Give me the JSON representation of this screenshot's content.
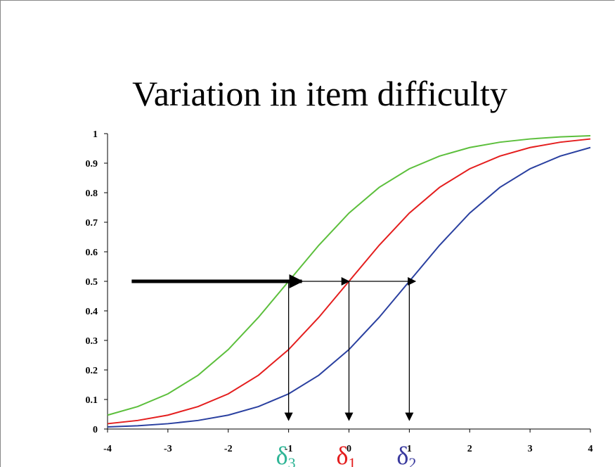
{
  "chart_data": {
    "type": "line",
    "title": "Variation in item difficulty",
    "x": [
      -4,
      -3.5,
      -3,
      -2.5,
      -2,
      -1.5,
      -1,
      -0.5,
      0,
      0.5,
      1,
      1.5,
      2,
      2.5,
      3,
      3.5,
      4
    ],
    "series": [
      {
        "color": "#5cbf3c",
        "values": [
          0.047,
          0.076,
          0.119,
          0.182,
          0.269,
          0.378,
          0.5,
          0.622,
          0.731,
          0.818,
          0.881,
          0.924,
          0.953,
          0.971,
          0.982,
          0.989,
          0.993
        ]
      },
      {
        "color": "#e41e1e",
        "values": [
          0.018,
          0.029,
          0.047,
          0.076,
          0.119,
          0.182,
          0.269,
          0.378,
          0.5,
          0.622,
          0.731,
          0.818,
          0.881,
          0.924,
          0.953,
          0.971,
          0.982
        ]
      },
      {
        "color": "#2a40a0",
        "values": [
          0.007,
          0.011,
          0.018,
          0.029,
          0.047,
          0.076,
          0.119,
          0.182,
          0.269,
          0.378,
          0.5,
          0.622,
          0.731,
          0.818,
          0.881,
          0.924,
          0.953
        ]
      }
    ],
    "xlim": [
      -4,
      4
    ],
    "xticks": [
      -4,
      -3,
      -2,
      -1,
      0,
      1,
      2,
      3,
      4
    ],
    "ylim": [
      0,
      1
    ],
    "yticks": [
      0,
      0.1,
      0.2,
      0.3,
      0.4,
      0.5,
      0.6,
      0.7,
      0.8,
      0.9,
      1
    ],
    "annotations": [
      {
        "text": "δ",
        "sub": "3",
        "x": -1,
        "color": "#2fb596"
      },
      {
        "text": "δ",
        "sub": "1",
        "x": 0,
        "color": "#e41e1e"
      },
      {
        "text": "δ",
        "sub": "2",
        "x": 1,
        "color": "#3a3a9e"
      }
    ],
    "arrows": [
      {
        "from": [
          -3.6,
          0.5
        ],
        "to": [
          -0.78,
          0.5
        ],
        "width": 5
      },
      {
        "from": [
          -0.78,
          0.5
        ],
        "to": [
          0,
          0.5
        ],
        "width": 1.3
      },
      {
        "from": [
          0,
          0.5
        ],
        "to": [
          1.1,
          0.5
        ],
        "width": 1.3
      },
      {
        "from": [
          -1,
          0.5
        ],
        "to": [
          -1,
          0.03
        ],
        "width": 1.3
      },
      {
        "from": [
          0,
          0.5
        ],
        "to": [
          0,
          0.03
        ],
        "width": 1.3
      },
      {
        "from": [
          1,
          0.5
        ],
        "to": [
          1,
          0.03
        ],
        "width": 1.3
      }
    ]
  }
}
